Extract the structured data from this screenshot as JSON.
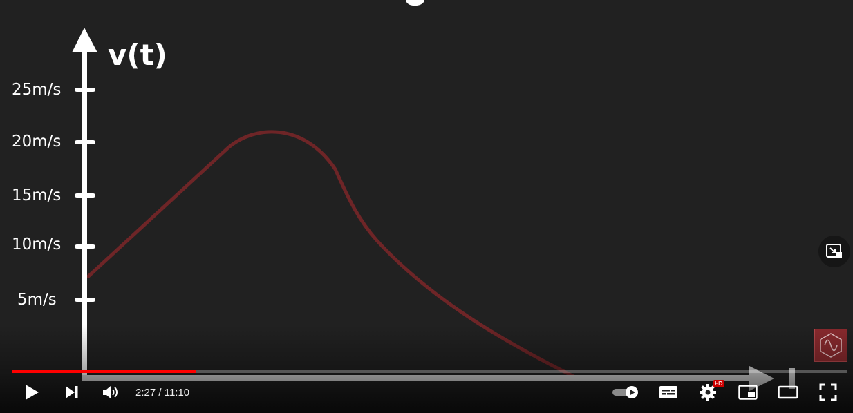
{
  "video": {
    "axis_title": "v(t)",
    "tick_labels": [
      "25m/s",
      "20m/s",
      "15m/s",
      "10m/s",
      "5m/s"
    ]
  },
  "chart_data": {
    "type": "line",
    "ylabel": "v(t)",
    "yticks": [
      {
        "label": "5m/s",
        "value": 5
      },
      {
        "label": "10m/s",
        "value": 10
      },
      {
        "label": "15m/s",
        "value": 15
      },
      {
        "label": "20m/s",
        "value": 20
      },
      {
        "label": "25m/s",
        "value": 25
      }
    ],
    "series": [
      {
        "color": "#6e2527",
        "x": [
          0,
          1,
          2,
          2.6,
          3.4,
          4.2,
          5.0,
          6.0,
          7.0,
          8.0,
          9.2
        ],
        "y": [
          6.1,
          10.5,
          15.0,
          18.5,
          20.8,
          19.8,
          14.5,
          9.8,
          6.3,
          3.0,
          0
        ]
      }
    ],
    "ylim": [
      0,
      28
    ]
  },
  "player": {
    "time_current": "2:27",
    "time_separator": " / ",
    "time_total": "11:10",
    "progress_played": 0.22,
    "progress_loaded": 0.0,
    "hd_badge": "HD"
  },
  "icons": {
    "play": "play-icon",
    "next": "next-icon",
    "volume": "volume-icon",
    "autoplay": "autoplay-toggle-icon",
    "subtitles": "subtitles-icon",
    "settings": "gear-icon",
    "miniplayer": "miniplayer-icon",
    "theater": "theater-mode-icon",
    "fullscreen": "fullscreen-icon",
    "watermark": "channel-watermark-icon"
  },
  "colors": {
    "progress_played": "#ff0000",
    "curve": "#6e2527",
    "watermark_bg": "#8a2a2e"
  }
}
